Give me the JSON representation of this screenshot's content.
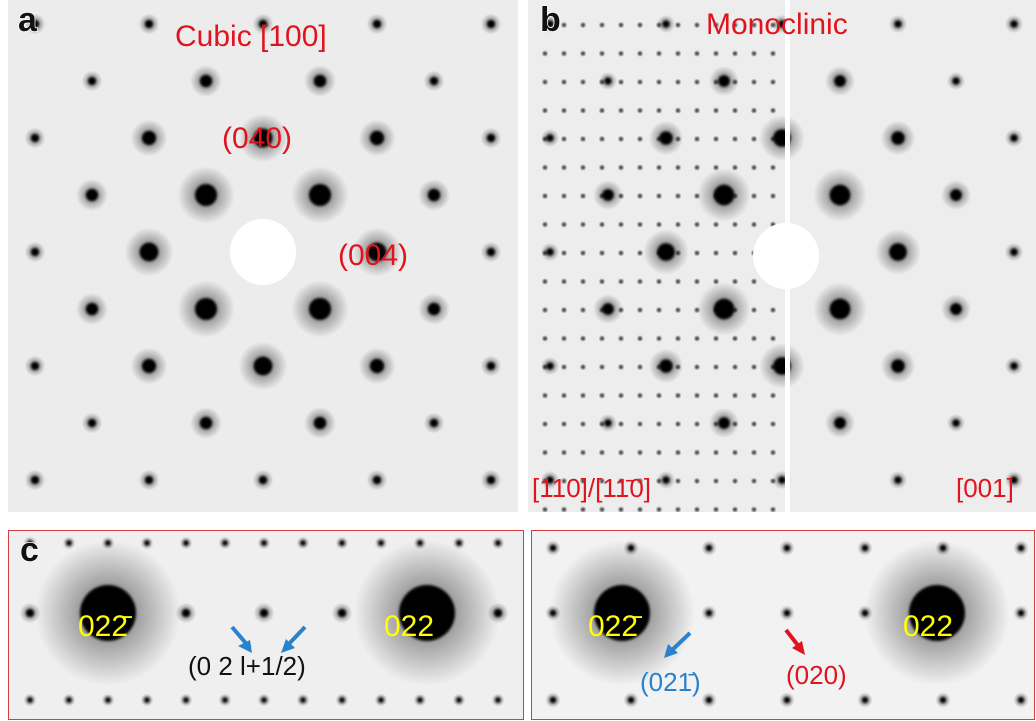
{
  "panels": [
    {
      "letter": "a",
      "title": "Cubic [100]",
      "labels": [
        "(040)",
        "(004)"
      ]
    },
    {
      "letter": "b",
      "title": "Monoclinic",
      "labels": [
        "[110]/[11̄0]",
        "[001]"
      ]
    },
    {
      "letter": "c",
      "labels": [
        "022̄",
        "022",
        "(0 2 l+1/2)",
        "022̄",
        "022",
        "(021̄)",
        "(020)"
      ]
    }
  ]
}
